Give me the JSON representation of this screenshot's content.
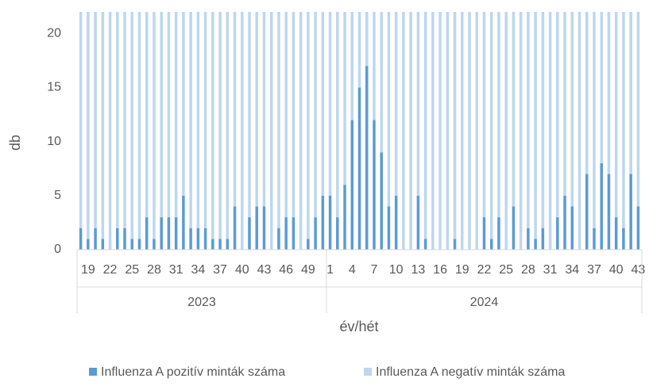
{
  "chart_data": {
    "type": "stacked_bar",
    "y_label": "db",
    "x_label": "év/hét",
    "groups": [
      {
        "name": "2023",
        "categories": [
          null,
          "19",
          null,
          null,
          "22",
          null,
          null,
          "25",
          null,
          null,
          "28",
          null,
          null,
          "31",
          null,
          null,
          "34",
          null,
          null,
          "37",
          null,
          null,
          "40",
          null,
          null,
          "43",
          null,
          null,
          "46",
          null,
          null,
          "49",
          null,
          null
        ]
      },
      {
        "name": "2024",
        "categories": [
          "1",
          null,
          null,
          "4",
          null,
          null,
          "7",
          null,
          null,
          "10",
          null,
          null,
          "13",
          null,
          null,
          "16",
          null,
          null,
          "19",
          null,
          null,
          "22",
          null,
          null,
          "25",
          null,
          null,
          "28",
          null,
          null,
          "31",
          null,
          null,
          "34",
          null,
          null,
          "37",
          null,
          null,
          "40",
          null,
          null,
          "43"
        ]
      }
    ],
    "series": [
      {
        "name": "Influenza A pozitív minták száma",
        "color": "#5b9bd5",
        "values": [
          2,
          1,
          2,
          1,
          0,
          2,
          2,
          1,
          1,
          3,
          1,
          3,
          3,
          3,
          5,
          2,
          2,
          2,
          1,
          1,
          1,
          4,
          0,
          3,
          4,
          4,
          0,
          2,
          3,
          3,
          0,
          1,
          3,
          5,
          5,
          3,
          6,
          12,
          15,
          17,
          12,
          9,
          4,
          5,
          0,
          0,
          5,
          1,
          0,
          0,
          0,
          1,
          0,
          0,
          0,
          3,
          1,
          3,
          0,
          4,
          0,
          2,
          1,
          2,
          0,
          3,
          5,
          4,
          0,
          7,
          2,
          8,
          7,
          3,
          2,
          7,
          4
        ]
      },
      {
        "name": "Influenza A negatív minták száma",
        "color": "#bdd7ee",
        "values": [
          20,
          21,
          20,
          21,
          22,
          20,
          20,
          21,
          21,
          19,
          21,
          19,
          19,
          19,
          17,
          20,
          20,
          20,
          21,
          21,
          21,
          18,
          22,
          19,
          18,
          18,
          22,
          20,
          19,
          19,
          22,
          21,
          19,
          17,
          17,
          19,
          16,
          10,
          7,
          5,
          10,
          13,
          18,
          17,
          22,
          22,
          17,
          21,
          22,
          22,
          22,
          21,
          22,
          22,
          22,
          19,
          21,
          19,
          22,
          18,
          22,
          20,
          21,
          20,
          22,
          19,
          17,
          18,
          22,
          15,
          20,
          14,
          15,
          19,
          20,
          15,
          18
        ]
      }
    ],
    "ylim": [
      0,
      22
    ],
    "yticks": [
      0,
      5,
      10,
      15,
      20
    ],
    "grid": false
  }
}
